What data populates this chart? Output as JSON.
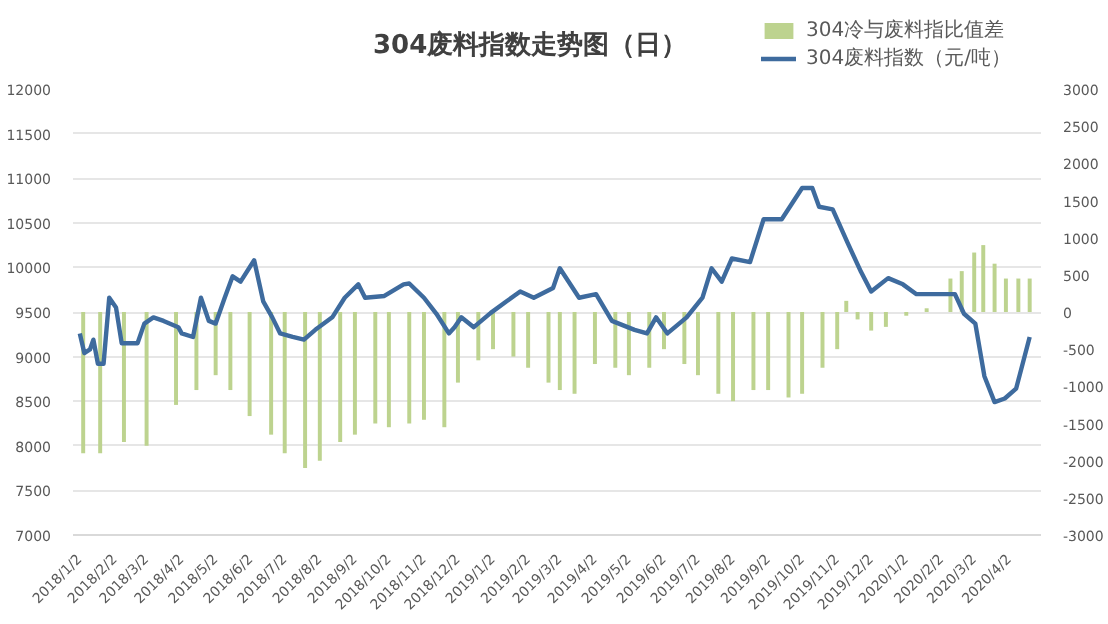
{
  "chart_data": {
    "type": "line",
    "title": "304废料指数走势图（日）",
    "xlim": [
      "2017-12-27",
      "2020-04-30"
    ],
    "xticks": [
      {
        "value": "2018-01-02",
        "label": "2018/1/2"
      },
      {
        "value": "2018-02-02",
        "label": "2018/2/2"
      },
      {
        "value": "2018-03-02",
        "label": "2018/3/2"
      },
      {
        "value": "2018-04-02",
        "label": "2018/4/2"
      },
      {
        "value": "2018-05-02",
        "label": "2018/5/2"
      },
      {
        "value": "2018-06-02",
        "label": "2018/6/2"
      },
      {
        "value": "2018-07-02",
        "label": "2018/7/2"
      },
      {
        "value": "2018-08-02",
        "label": "2018/8/2"
      },
      {
        "value": "2018-09-02",
        "label": "2018/9/2"
      },
      {
        "value": "2018-10-02",
        "label": "2018/10/2"
      },
      {
        "value": "2018-11-02",
        "label": "2018/11/2"
      },
      {
        "value": "2018-12-02",
        "label": "2018/12/2"
      },
      {
        "value": "2019-01-02",
        "label": "2019/1/2"
      },
      {
        "value": "2019-02-02",
        "label": "2019/2/2"
      },
      {
        "value": "2019-03-02",
        "label": "2019/3/2"
      },
      {
        "value": "2019-04-02",
        "label": "2019/4/2"
      },
      {
        "value": "2019-05-02",
        "label": "2019/5/2"
      },
      {
        "value": "2019-06-02",
        "label": "2019/6/2"
      },
      {
        "value": "2019-07-02",
        "label": "2019/7/2"
      },
      {
        "value": "2019-08-02",
        "label": "2019/8/2"
      },
      {
        "value": "2019-09-02",
        "label": "2019/9/2"
      },
      {
        "value": "2019-10-02",
        "label": "2019/10/2"
      },
      {
        "value": "2019-11-02",
        "label": "2019/11/2"
      },
      {
        "value": "2019-12-02",
        "label": "2019/12/2"
      },
      {
        "value": "2020-01-02",
        "label": "2020/1/2"
      },
      {
        "value": "2020-02-02",
        "label": "2020/2/2"
      },
      {
        "value": "2020-03-02",
        "label": "2020/3/2"
      },
      {
        "value": "2020-04-02",
        "label": "2020/4/2"
      }
    ],
    "ylim": [
      7000,
      12000
    ],
    "yticks": [
      7000,
      7500,
      8000,
      8500,
      9000,
      9500,
      10000,
      10500,
      11000,
      11500,
      12000
    ],
    "y2lim": [
      -3000,
      3000
    ],
    "y2ticks": [
      -3000,
      -2500,
      -2000,
      -1500,
      -1000,
      -500,
      0,
      500,
      1000,
      1500,
      2000,
      2500,
      3000
    ],
    "grid": "y",
    "legend": "top right",
    "series": [
      {
        "name": "304冷与废料指比值差",
        "type": "bar",
        "axis": "y2",
        "color": "#bdd38f",
        "x": [
          "2018-01-05",
          "2018-01-20",
          "2018-02-10",
          "2018-03-02",
          "2018-03-28",
          "2018-04-15",
          "2018-05-02",
          "2018-05-15",
          "2018-06-01",
          "2018-06-20",
          "2018-07-02",
          "2018-07-20",
          "2018-08-02",
          "2018-08-20",
          "2018-09-02",
          "2018-09-20",
          "2018-10-02",
          "2018-10-20",
          "2018-11-02",
          "2018-11-20",
          "2018-12-02",
          "2018-12-20",
          "2019-01-02",
          "2019-01-20",
          "2019-02-02",
          "2019-02-20",
          "2019-03-02",
          "2019-03-15",
          "2019-04-02",
          "2019-04-20",
          "2019-05-02",
          "2019-05-20",
          "2019-06-02",
          "2019-06-20",
          "2019-07-02",
          "2019-07-20",
          "2019-08-02",
          "2019-08-20",
          "2019-09-02",
          "2019-09-20",
          "2019-10-02",
          "2019-10-20",
          "2019-11-02",
          "2019-11-10",
          "2019-11-20",
          "2019-12-02",
          "2019-12-15",
          "2020-01-02",
          "2020-01-20",
          "2020-02-10",
          "2020-02-20",
          "2020-03-02",
          "2020-03-10",
          "2020-03-20",
          "2020-03-30",
          "2020-04-10",
          "2020-04-20"
        ],
        "values": [
          -1900,
          -1900,
          -1750,
          -1800,
          -1250,
          -1050,
          -850,
          -1050,
          -1400,
          -1650,
          -1900,
          -2100,
          -2000,
          -1750,
          -1650,
          -1500,
          -1550,
          -1500,
          -1450,
          -1550,
          -950,
          -650,
          -500,
          -600,
          -750,
          -950,
          -1050,
          -1100,
          -700,
          -750,
          -850,
          -750,
          -500,
          -700,
          -850,
          -1100,
          -1200,
          -1050,
          -1050,
          -1150,
          -1100,
          -750,
          -500,
          150,
          -100,
          -250,
          -200,
          -50,
          50,
          450,
          550,
          800,
          900,
          650,
          450,
          450,
          450
        ]
      },
      {
        "name": "304废料指数（元/吨）",
        "color": "#3e6b9e",
        "x": [
          "2018-01-02",
          "2018-01-06",
          "2018-01-11",
          "2018-01-14",
          "2018-01-18",
          "2018-01-23",
          "2018-01-28",
          "2018-02-03",
          "2018-02-08",
          "2018-02-22",
          "2018-02-28",
          "2018-03-08",
          "2018-03-17",
          "2018-03-30",
          "2018-04-02",
          "2018-04-12",
          "2018-04-19",
          "2018-04-26",
          "2018-05-02",
          "2018-05-10",
          "2018-05-17",
          "2018-05-24",
          "2018-06-05",
          "2018-06-13",
          "2018-06-21",
          "2018-06-28",
          "2018-07-09",
          "2018-07-19",
          "2018-07-29",
          "2018-08-13",
          "2018-08-24",
          "2018-09-05",
          "2018-09-11",
          "2018-09-28",
          "2018-10-15",
          "2018-10-20",
          "2018-11-02",
          "2018-11-13",
          "2018-11-24",
          "2018-11-29",
          "2018-12-05",
          "2018-12-16",
          "2018-12-31",
          "2019-01-14",
          "2019-01-26",
          "2019-02-07",
          "2019-02-24",
          "2019-03-02",
          "2019-03-19",
          "2019-04-03",
          "2019-04-17",
          "2019-05-07",
          "2019-05-18",
          "2019-05-26",
          "2019-06-05",
          "2019-06-22",
          "2019-07-06",
          "2019-07-14",
          "2019-07-23",
          "2019-08-01",
          "2019-08-17",
          "2019-08-29",
          "2019-09-14",
          "2019-10-02",
          "2019-10-11",
          "2019-10-17",
          "2019-10-29",
          "2019-11-11",
          "2019-11-23",
          "2019-12-02",
          "2019-12-17",
          "2019-12-30",
          "2020-01-11",
          "2020-02-14",
          "2020-02-22",
          "2020-03-03",
          "2020-03-11",
          "2020-03-20",
          "2020-03-29",
          "2020-04-08",
          "2020-04-20"
        ],
        "values": [
          9260,
          9040,
          9080,
          9190,
          8920,
          8920,
          9660,
          9550,
          9150,
          9150,
          9370,
          9440,
          9400,
          9330,
          9260,
          9220,
          9660,
          9400,
          9370,
          9660,
          9900,
          9840,
          10080,
          9620,
          9440,
          9260,
          9220,
          9190,
          9300,
          9440,
          9660,
          9810,
          9660,
          9680,
          9810,
          9820,
          9660,
          9480,
          9260,
          9330,
          9440,
          9330,
          9490,
          9620,
          9730,
          9660,
          9770,
          9990,
          9660,
          9700,
          9400,
          9300,
          9260,
          9440,
          9260,
          9440,
          9660,
          9990,
          9840,
          10100,
          10060,
          10540,
          10540,
          10890,
          10890,
          10680,
          10650,
          10280,
          9950,
          9730,
          9880,
          9810,
          9700,
          9700,
          9480,
          9370,
          8780,
          8490,
          8530,
          8640,
          9220
        ]
      }
    ]
  }
}
